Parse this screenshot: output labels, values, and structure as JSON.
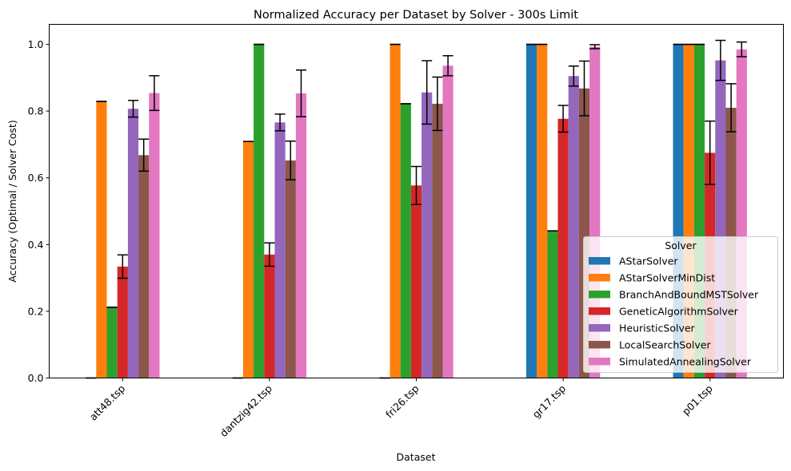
{
  "chart_data": {
    "type": "bar",
    "title": "Normalized Accuracy per Dataset by Solver - 300s Limit",
    "xlabel": "Dataset",
    "ylabel": "Accuracy (Optimal / Solver Cost)",
    "ylim": [
      0,
      1.06
    ],
    "yticks": [
      "0.0",
      "0.2",
      "0.4",
      "0.6",
      "0.8",
      "1.0"
    ],
    "categories": [
      "att48.tsp",
      "dantzig42.tsp",
      "fri26.tsp",
      "gr17.tsp",
      "p01.tsp"
    ],
    "grid": false,
    "legend": {
      "title": "Solver",
      "placement": "lower-right"
    },
    "series": [
      {
        "name": "AStarSolver",
        "color": "#1f77b4",
        "values": [
          0,
          0,
          0,
          1.0,
          1.0
        ],
        "errors": [
          0,
          0,
          0,
          0,
          0
        ]
      },
      {
        "name": "AStarSolverMinDist",
        "color": "#ff7f0e",
        "values": [
          0.829,
          0.709,
          1.0,
          1.0,
          1.0
        ],
        "errors": [
          0,
          0,
          0,
          0,
          0
        ]
      },
      {
        "name": "BranchAndBoundMSTSolver",
        "color": "#2ca02c",
        "values": [
          0.212,
          1.0,
          0.822,
          0.441,
          1.0
        ],
        "errors": [
          0,
          0,
          0,
          0,
          0
        ]
      },
      {
        "name": "GeneticAlgorithmSolver",
        "color": "#d62728",
        "values": [
          0.334,
          0.37,
          0.577,
          0.777,
          0.675
        ],
        "errors": [
          0.035,
          0.035,
          0.057,
          0.04,
          0.095
        ]
      },
      {
        "name": "HeuristicSolver",
        "color": "#9467bd",
        "values": [
          0.807,
          0.766,
          0.856,
          0.905,
          0.952
        ],
        "errors": [
          0.025,
          0.025,
          0.095,
          0.03,
          0.06
        ]
      },
      {
        "name": "LocalSearchSolver",
        "color": "#8c564b",
        "values": [
          0.668,
          0.652,
          0.822,
          0.868,
          0.81
        ],
        "errors": [
          0.048,
          0.058,
          0.08,
          0.082,
          0.072
        ]
      },
      {
        "name": "SimulatedAnnealingSolver",
        "color": "#e377c2",
        "values": [
          0.854,
          0.853,
          0.936,
          0.993,
          0.985
        ],
        "errors": [
          0.052,
          0.07,
          0.03,
          0.006,
          0.022
        ]
      }
    ]
  }
}
